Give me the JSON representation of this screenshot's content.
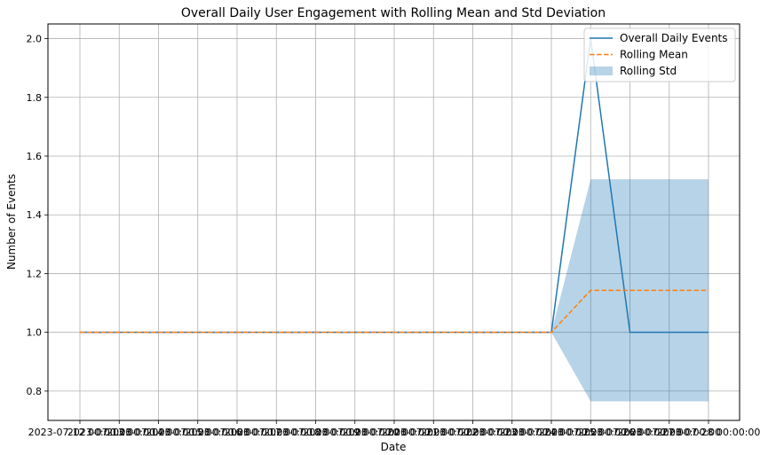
{
  "chart_data": {
    "type": "line",
    "title": "Overall Daily User Engagement with Rolling Mean and Std Deviation",
    "xlabel": "Date",
    "ylabel": "Number of Events",
    "x_tick_labels": [
      "2023-07-12 00:00:00",
      "2023-07-13 00:00:00",
      "2023-07-14 00:00:00",
      "2023-07-15 00:00:00",
      "2023-07-16 00:00:00",
      "2023-07-17 00:00:00",
      "2023-07-18 00:00:00",
      "2023-07-19 00:00:00",
      "2023-07-20 00:00:00",
      "2023-07-21 00:00:00",
      "2023-07-22 00:00:00",
      "2023-07-23 00:00:00",
      "2023-07-24 00:00:00",
      "2023-07-25 00:00:00",
      "2023-07-26 00:00:00",
      "2023-07-27 00:00:00",
      "2023-07-28 00:00:00"
    ],
    "x": [
      "2023-07-12",
      "2023-07-13",
      "2023-07-14",
      "2023-07-15",
      "2023-07-16",
      "2023-07-17",
      "2023-07-18",
      "2023-07-19",
      "2023-07-20",
      "2023-07-21",
      "2023-07-22",
      "2023-07-23",
      "2023-07-24",
      "2023-07-25",
      "2023-07-26",
      "2023-07-27",
      "2023-07-28"
    ],
    "series": [
      {
        "name": "Overall Daily Events",
        "style": "solid",
        "color": "#1f77b4",
        "values": [
          1,
          1,
          1,
          1,
          1,
          1,
          1,
          1,
          1,
          1,
          1,
          1,
          1,
          2,
          1,
          1,
          1
        ]
      },
      {
        "name": "Rolling Mean",
        "style": "dashed",
        "color": "#ff7f0e",
        "values": [
          1,
          1,
          1,
          1,
          1,
          1,
          1,
          1,
          1,
          1,
          1,
          1,
          1,
          1.143,
          1.143,
          1.143,
          1.143
        ]
      }
    ],
    "band": {
      "name": "Rolling Std",
      "color": "#1f77b4",
      "lower": [
        1,
        1,
        1,
        1,
        1,
        1,
        1,
        1,
        1,
        1,
        1,
        1,
        1,
        0.765,
        0.765,
        0.765,
        0.765
      ],
      "upper": [
        1,
        1,
        1,
        1,
        1,
        1,
        1,
        1,
        1,
        1,
        1,
        1,
        1,
        1.521,
        1.521,
        1.521,
        1.521
      ]
    },
    "y_ticks": [
      "0.8",
      "1.0",
      "1.2",
      "1.4",
      "1.6",
      "1.8",
      "2.0"
    ],
    "ylim": [
      0.7,
      2.05
    ],
    "grid": true,
    "legend_position": "top-right"
  }
}
